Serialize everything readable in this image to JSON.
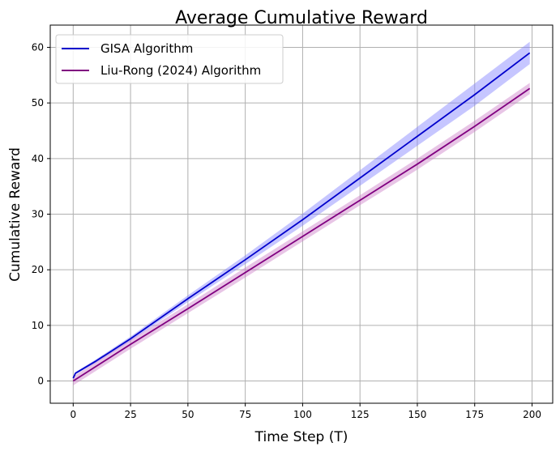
{
  "chart_data": {
    "type": "line",
    "title": "Average Cumulative Reward",
    "xlabel": "Time Step (T)",
    "ylabel": "Cumulative Reward",
    "xlim": [
      -10,
      209
    ],
    "ylim": [
      -4,
      64
    ],
    "xticks": [
      0,
      25,
      50,
      75,
      100,
      125,
      150,
      175,
      200
    ],
    "yticks": [
      0,
      10,
      20,
      30,
      40,
      50,
      60
    ],
    "grid": true,
    "legend": "top-left",
    "series": [
      {
        "name": "GISA Algorithm",
        "color": "#0000cc",
        "band_color": "#8080ff",
        "x": [
          0,
          1,
          10,
          25,
          50,
          75,
          100,
          125,
          150,
          175,
          199
        ],
        "y": [
          0.5,
          1.4,
          3.6,
          7.6,
          14.8,
          21.8,
          29.0,
          36.5,
          44.0,
          51.5,
          59.0
        ],
        "lower": [
          0.4,
          1.2,
          3.3,
          7.2,
          14.2,
          21.0,
          27.9,
          35.1,
          42.3,
          49.5,
          57.0
        ],
        "upper": [
          0.7,
          1.6,
          3.9,
          8.0,
          15.4,
          22.6,
          30.1,
          37.9,
          45.7,
          53.5,
          61.0
        ]
      },
      {
        "name": "Liu-Rong (2024) Algorithm",
        "color": "#800080",
        "band_color": "#cc7ec8",
        "x": [
          0,
          25,
          50,
          75,
          100,
          125,
          150,
          175,
          199
        ],
        "y": [
          0.0,
          6.6,
          13.0,
          19.5,
          26.0,
          32.5,
          39.0,
          45.8,
          52.6
        ],
        "lower": [
          -0.8,
          5.8,
          12.2,
          18.6,
          25.1,
          31.6,
          38.0,
          44.8,
          51.6
        ],
        "upper": [
          0.8,
          7.4,
          13.8,
          20.4,
          26.9,
          33.4,
          40.0,
          46.8,
          53.6
        ]
      }
    ]
  }
}
